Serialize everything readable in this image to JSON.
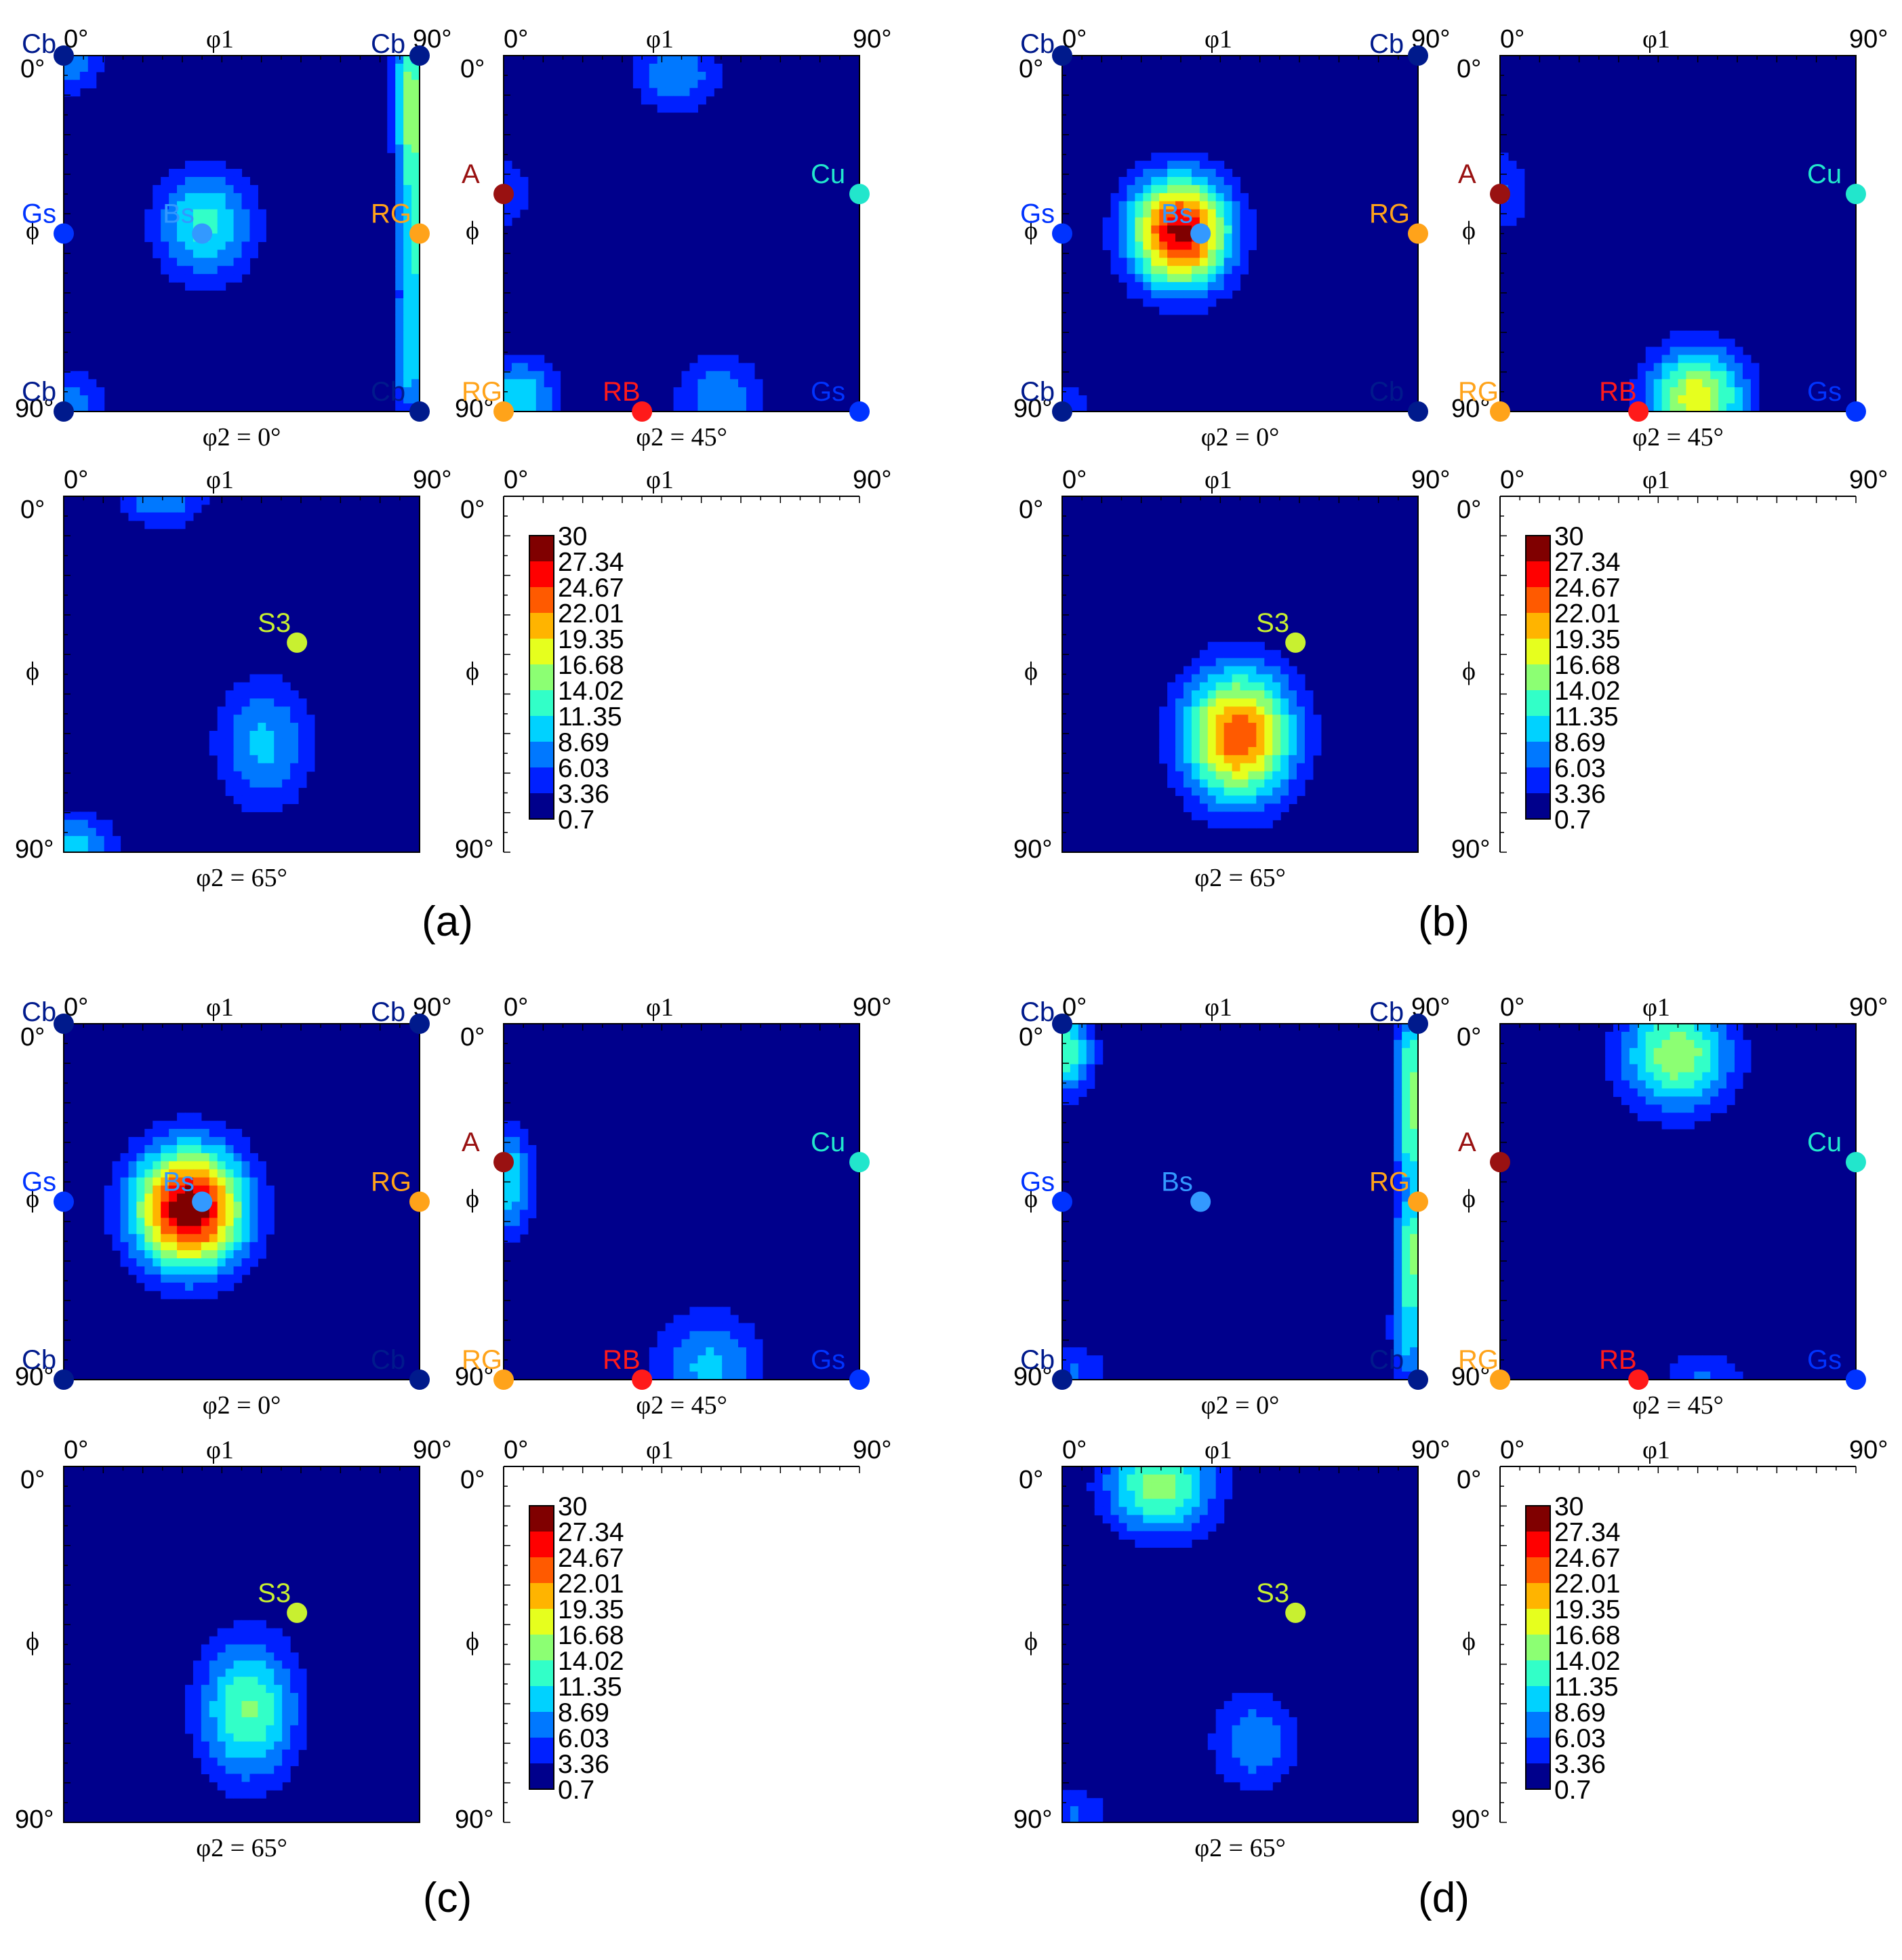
{
  "figure": {
    "colorbar_levels": [
      "30",
      "27.34",
      "24.67",
      "22.01",
      "19.35",
      "16.68",
      "14.02",
      "11.35",
      "8.69",
      "6.03",
      "3.36",
      "0.7"
    ],
    "colorbar_colors": [
      "#800000",
      "#ff0000",
      "#ff5a00",
      "#ffb400",
      "#e6ff1e",
      "#8cff73",
      "#32ffc8",
      "#00d2ff",
      "#0078ff",
      "#0020ff",
      "#00008c"
    ],
    "axis_labels": {
      "top_left": "0°",
      "top_mid": "φ1",
      "top_right": "90°",
      "left_top": "0°",
      "left_mid": "ϕ",
      "left_bottom": "90°"
    },
    "panel_captions": {
      "phi2_0": "φ2 = 0°",
      "phi2_45": "φ2 = 45°",
      "phi2_65": "φ2 = 65°"
    },
    "markers": {
      "phi2_0": [
        {
          "label": "Cb",
          "phi1": 0,
          "PHI": 0,
          "color": "#001a8c",
          "label_color": "#001a8c"
        },
        {
          "label": "Cb",
          "phi1": 90,
          "PHI": 0,
          "color": "#001a8c",
          "label_color": "#001a8c"
        },
        {
          "label": "Gs",
          "phi1": 0,
          "PHI": 45,
          "color": "#0033ff",
          "label_color": "#0033ff"
        },
        {
          "label": "Bs",
          "phi1": 35,
          "PHI": 45,
          "color": "#3399ff",
          "label_color": "#3399ff"
        },
        {
          "label": "RG",
          "phi1": 90,
          "PHI": 45,
          "color": "#ffa31a",
          "label_color": "#ffa31a"
        },
        {
          "label": "Cb",
          "phi1": 0,
          "PHI": 90,
          "color": "#001a8c",
          "label_color": "#001a8c"
        },
        {
          "label": "Cb",
          "phi1": 90,
          "PHI": 90,
          "color": "#001a8c",
          "label_color": "#001a8c"
        }
      ],
      "phi2_45": [
        {
          "label": "A",
          "phi1": 0,
          "PHI": 35,
          "color": "#991111",
          "label_color": "#991111"
        },
        {
          "label": "Cu",
          "phi1": 90,
          "PHI": 35,
          "color": "#22e6cc",
          "label_color": "#22e6cc"
        },
        {
          "label": "RG",
          "phi1": 0,
          "PHI": 90,
          "color": "#ffa31a",
          "label_color": "#ffa31a"
        },
        {
          "label": "RB",
          "phi1": 35,
          "PHI": 90,
          "color": "#ff1a1a",
          "label_color": "#ff1a1a"
        },
        {
          "label": "Gs",
          "phi1": 90,
          "PHI": 90,
          "color": "#0033ff",
          "label_color": "#0033ff"
        }
      ],
      "phi2_65": [
        {
          "label": "S3",
          "phi1": 59,
          "PHI": 37,
          "color": "#c8f030",
          "label_color": "#c8f030"
        }
      ]
    }
  },
  "chart_data": [
    {
      "type": "heatmap",
      "panel_label": "(a)",
      "x_axis": "φ1",
      "y_axis": "ϕ",
      "xlim": [
        0,
        90
      ],
      "ylim": [
        0,
        90
      ],
      "zlim": [
        0.7,
        30
      ],
      "sections": [
        {
          "phi2": 0,
          "peaks": [
            {
              "phi1": 36,
              "PHI": 43,
              "value": 12,
              "sx": 9,
              "sy": 10
            },
            {
              "phi1": 2,
              "PHI": 2,
              "value": 7,
              "sx": 6,
              "sy": 6
            },
            {
              "phi1": 88,
              "PHI": 6,
              "value": 11,
              "sx": 3,
              "sy": 12
            },
            {
              "phi1": 89,
              "PHI": 25,
              "value": 10,
              "sx": 3,
              "sy": 14
            },
            {
              "phi1": 89,
              "PHI": 55,
              "value": 10,
              "sx": 3,
              "sy": 14
            },
            {
              "phi1": 88,
              "PHI": 80,
              "value": 8,
              "sx": 3,
              "sy": 10
            },
            {
              "phi1": 2,
              "PHI": 88,
              "value": 7,
              "sx": 6,
              "sy": 6
            }
          ]
        },
        {
          "phi2": 45,
          "peaks": [
            {
              "phi1": 44,
              "PHI": 5,
              "value": 8,
              "sx": 8,
              "sy": 7
            },
            {
              "phi1": 1,
              "PHI": 35,
              "value": 5,
              "sx": 5,
              "sy": 8
            },
            {
              "phi1": 4,
              "PHI": 88,
              "value": 11,
              "sx": 7,
              "sy": 8
            },
            {
              "phi1": 55,
              "PHI": 88,
              "value": 8,
              "sx": 8,
              "sy": 9
            }
          ]
        },
        {
          "phi2": 65,
          "peaks": [
            {
              "phi1": 25,
              "PHI": 1,
              "value": 8,
              "sx": 8,
              "sy": 5
            },
            {
              "phi1": 51,
              "PHI": 63,
              "value": 9,
              "sx": 9,
              "sy": 12
            },
            {
              "phi1": 2,
              "PHI": 89,
              "value": 10,
              "sx": 8,
              "sy": 6
            }
          ]
        }
      ]
    },
    {
      "type": "heatmap",
      "panel_label": "(b)",
      "x_axis": "φ1",
      "y_axis": "ϕ",
      "xlim": [
        0,
        90
      ],
      "ylim": [
        0,
        90
      ],
      "zlim": [
        0.7,
        30
      ],
      "sections": [
        {
          "phi2": 0,
          "peaks": [
            {
              "phi1": 30,
              "PHI": 45,
              "value": 28,
              "sx": 9,
              "sy": 10
            },
            {
              "phi1": 2,
              "PHI": 88,
              "value": 3.5,
              "sx": 8,
              "sy": 6
            },
            {
              "phi1": 78,
              "PHI": 72,
              "value": 2,
              "sx": 10,
              "sy": 6
            }
          ]
        },
        {
          "phi2": 45,
          "peaks": [
            {
              "phi1": 1,
              "PHI": 35,
              "value": 6,
              "sx": 5,
              "sy": 8
            },
            {
              "phi1": 50,
              "PHI": 87,
              "value": 18,
              "sx": 9,
              "sy": 9
            },
            {
              "phi1": 14,
              "PHI": 53,
              "value": 2,
              "sx": 3,
              "sy": 3
            }
          ]
        },
        {
          "phi2": 65,
          "peaks": [
            {
              "phi1": 45,
              "PHI": 61,
              "value": 24,
              "sx": 10,
              "sy": 12
            },
            {
              "phi1": 88,
              "PHI": 43,
              "value": 2,
              "sx": 3,
              "sy": 3
            }
          ]
        }
      ]
    },
    {
      "type": "heatmap",
      "panel_label": "(c)",
      "x_axis": "φ1",
      "y_axis": "ϕ",
      "xlim": [
        0,
        90
      ],
      "ylim": [
        0,
        90
      ],
      "zlim": [
        0.7,
        30
      ],
      "sections": [
        {
          "phi2": 0,
          "peaks": [
            {
              "phi1": 32,
              "PHI": 47,
              "value": 30,
              "sx": 10,
              "sy": 11
            },
            {
              "phi1": 89,
              "PHI": 38,
              "value": 2.5,
              "sx": 3,
              "sy": 7
            },
            {
              "phi1": 55,
              "PHI": 79,
              "value": 2,
              "sx": 5,
              "sy": 4
            },
            {
              "phi1": 89,
              "PHI": 86,
              "value": 2,
              "sx": 3,
              "sy": 4
            }
          ]
        },
        {
          "phi2": 45,
          "peaks": [
            {
              "phi1": 1,
              "PHI": 40,
              "value": 11,
              "sx": 5,
              "sy": 10
            },
            {
              "phi1": 52,
              "PHI": 87,
              "value": 9,
              "sx": 10,
              "sy": 10
            },
            {
              "phi1": 14,
              "PHI": 75,
              "value": 2,
              "sx": 6,
              "sy": 5
            }
          ]
        },
        {
          "phi2": 65,
          "peaks": [
            {
              "phi1": 47,
              "PHI": 62,
              "value": 14,
              "sx": 9,
              "sy": 13
            },
            {
              "phi1": 79,
              "PHI": 20,
              "value": 2,
              "sx": 2,
              "sy": 2
            },
            {
              "phi1": 7,
              "PHI": 90,
              "value": 3,
              "sx": 8,
              "sy": 4
            }
          ]
        }
      ]
    },
    {
      "type": "heatmap",
      "panel_label": "(d)",
      "x_axis": "φ1",
      "y_axis": "ϕ",
      "xlim": [
        0,
        90
      ],
      "ylim": [
        0,
        90
      ],
      "zlim": [
        0.7,
        30
      ],
      "sections": [
        {
          "phi2": 0,
          "peaks": [
            {
              "phi1": 1,
              "PHI": 7,
              "value": 13,
              "sx": 5,
              "sy": 8
            },
            {
              "phi1": 89,
              "PHI": 10,
              "value": 12,
              "sx": 3,
              "sy": 12
            },
            {
              "phi1": 89,
              "PHI": 30,
              "value": 10,
              "sx": 3,
              "sy": 10
            },
            {
              "phi1": 89,
              "PHI": 58,
              "value": 14,
              "sx": 3,
              "sy": 10
            },
            {
              "phi1": 88,
              "PHI": 80,
              "value": 9,
              "sx": 3,
              "sy": 10
            },
            {
              "phi1": 3,
              "PHI": 89,
              "value": 6,
              "sx": 7,
              "sy": 5
            }
          ]
        },
        {
          "phi2": 45,
          "peaks": [
            {
              "phi1": 45,
              "PHI": 8,
              "value": 16,
              "sx": 10,
              "sy": 10
            },
            {
              "phi1": 1,
              "PHI": 45,
              "value": 3,
              "sx": 5,
              "sy": 8
            },
            {
              "phi1": 52,
              "PHI": 90,
              "value": 6,
              "sx": 8,
              "sy": 5
            }
          ]
        },
        {
          "phi2": 65,
          "peaks": [
            {
              "phi1": 25,
              "PHI": 5,
              "value": 15,
              "sx": 10,
              "sy": 9
            },
            {
              "phi1": 49,
              "PHI": 70,
              "value": 8,
              "sx": 8,
              "sy": 9
            },
            {
              "phi1": 3,
              "PHI": 89,
              "value": 6,
              "sx": 7,
              "sy": 5
            }
          ]
        }
      ]
    }
  ]
}
